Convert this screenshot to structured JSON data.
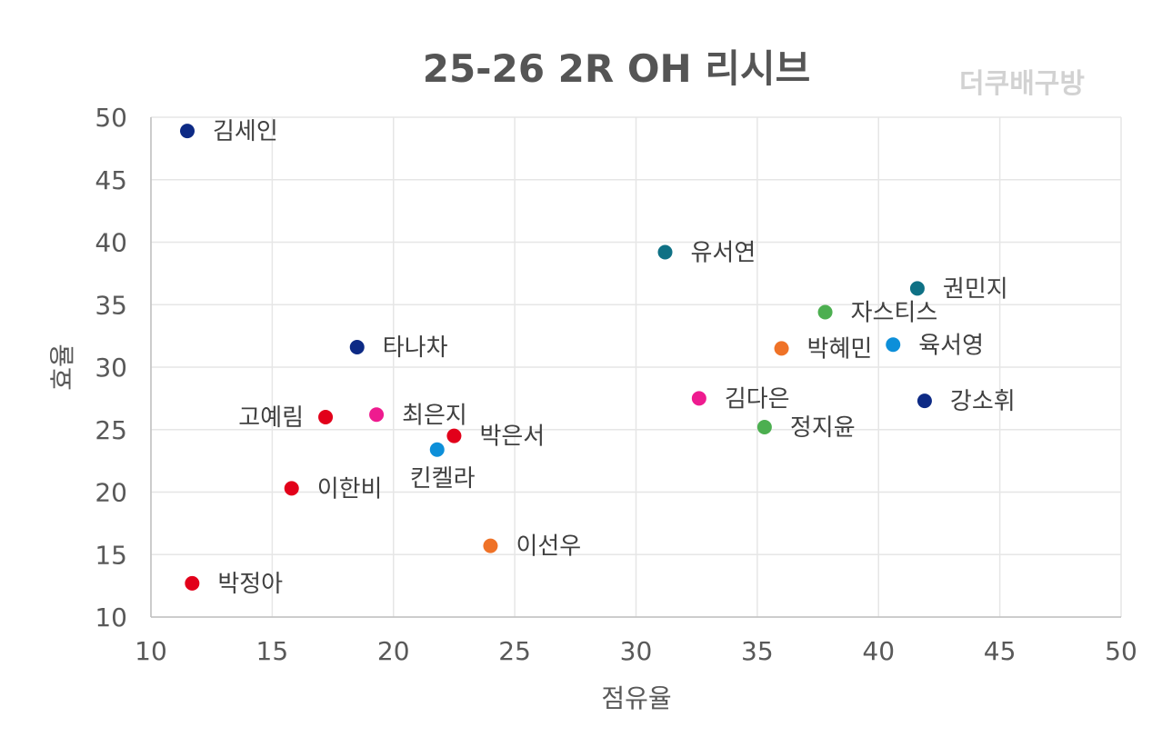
{
  "chart_data": {
    "type": "scatter",
    "title": "25-26 2R OH 리시브",
    "watermark": "더쿠배구방",
    "xlabel": "점유율",
    "ylabel": "효율",
    "xlim": [
      10,
      50
    ],
    "ylim": [
      10,
      50
    ],
    "xticks": [
      10,
      15,
      20,
      25,
      30,
      35,
      40,
      45,
      50
    ],
    "yticks": [
      10,
      15,
      20,
      25,
      30,
      35,
      40,
      45,
      50
    ],
    "grid": true,
    "points": [
      {
        "label": "김세인",
        "x": 11.5,
        "y": 48.9,
        "color": "#0d2a85",
        "label_pos": "right"
      },
      {
        "label": "유서연",
        "x": 31.2,
        "y": 39.2,
        "color": "#0f7185",
        "label_pos": "right"
      },
      {
        "label": "권민지",
        "x": 41.6,
        "y": 36.3,
        "color": "#0f7185",
        "label_pos": "right"
      },
      {
        "label": "자스티스",
        "x": 37.8,
        "y": 34.4,
        "color": "#4caf50",
        "label_pos": "right"
      },
      {
        "label": "타나차",
        "x": 18.5,
        "y": 31.6,
        "color": "#0d2a85",
        "label_pos": "right"
      },
      {
        "label": "박혜민",
        "x": 36.0,
        "y": 31.5,
        "color": "#ef7227",
        "label_pos": "right"
      },
      {
        "label": "육서영",
        "x": 40.6,
        "y": 31.8,
        "color": "#0d8fd9",
        "label_pos": "right"
      },
      {
        "label": "김다은",
        "x": 32.6,
        "y": 27.5,
        "color": "#ee1b8f",
        "label_pos": "right"
      },
      {
        "label": "강소휘",
        "x": 41.9,
        "y": 27.3,
        "color": "#0d2a85",
        "label_pos": "right"
      },
      {
        "label": "정지윤",
        "x": 35.3,
        "y": 25.2,
        "color": "#4caf50",
        "label_pos": "right"
      },
      {
        "label": "고예림",
        "x": 17.2,
        "y": 26.0,
        "color": "#e2001a",
        "label_pos": "left"
      },
      {
        "label": "최은지",
        "x": 19.3,
        "y": 26.2,
        "color": "#ee1b8f",
        "label_pos": "right"
      },
      {
        "label": "박은서",
        "x": 22.5,
        "y": 24.5,
        "color": "#e2001a",
        "label_pos": "right-below"
      },
      {
        "label": "킨켈라",
        "x": 21.8,
        "y": 23.4,
        "color": "#0d8fd9",
        "label_pos": "below"
      },
      {
        "label": "이한비",
        "x": 15.8,
        "y": 20.3,
        "color": "#e2001a",
        "label_pos": "right"
      },
      {
        "label": "이선우",
        "x": 24.0,
        "y": 15.7,
        "color": "#ef7227",
        "label_pos": "right"
      },
      {
        "label": "박정아",
        "x": 11.7,
        "y": 12.7,
        "color": "#e2001a",
        "label_pos": "right"
      }
    ]
  }
}
